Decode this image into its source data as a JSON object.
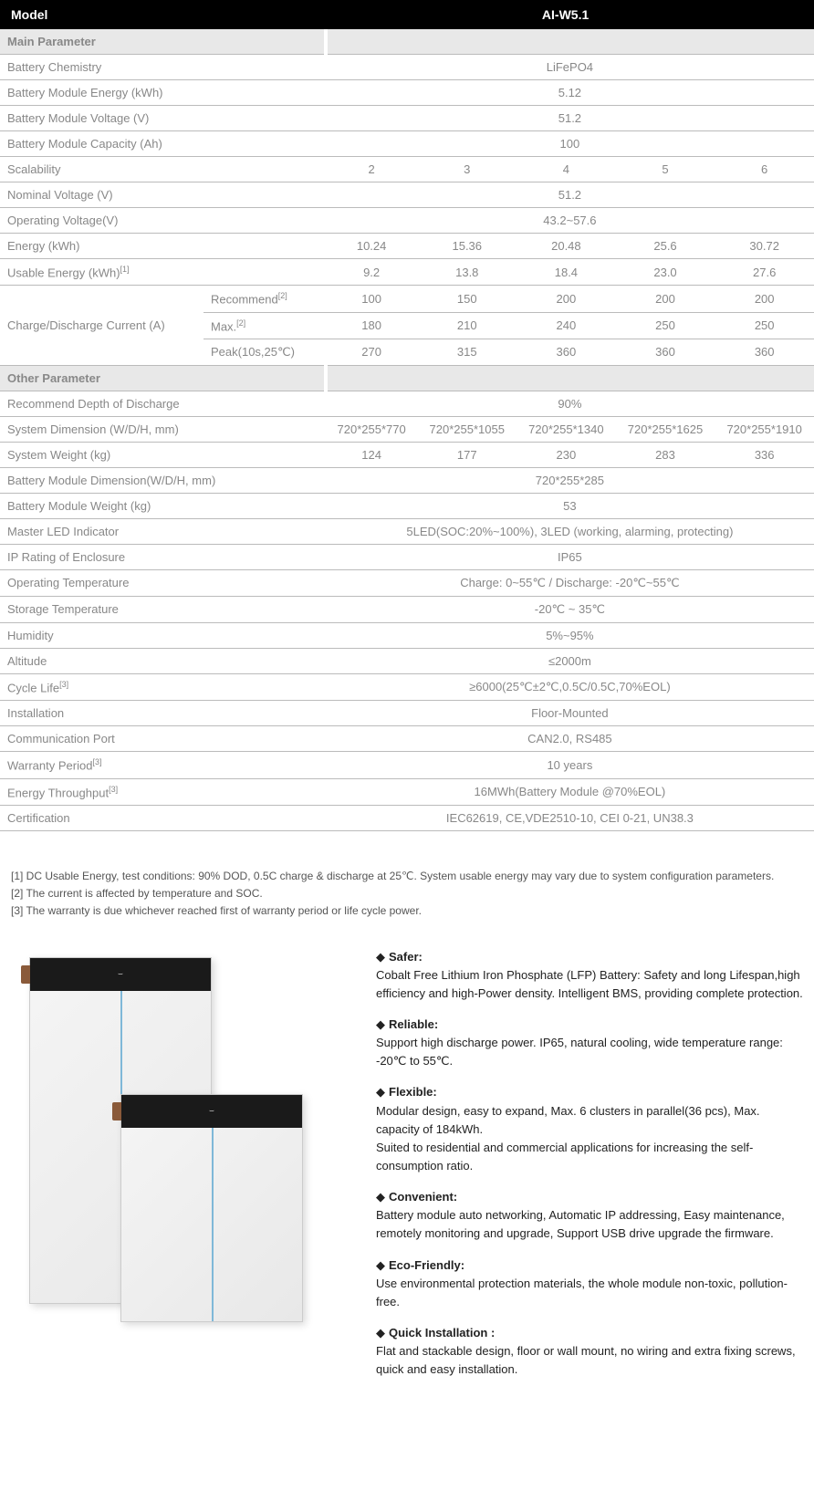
{
  "header": {
    "label": "Model",
    "value": "AI-W5.1"
  },
  "sections": {
    "main": "Main Parameter",
    "other": "Other Parameter"
  },
  "main_rows": {
    "chemistry": {
      "label": "Battery Chemistry",
      "value": "LiFePO4"
    },
    "module_energy": {
      "label": "Battery Module Energy (kWh)",
      "value": "5.12"
    },
    "module_voltage": {
      "label": "Battery Module Voltage (V)",
      "value": "51.2"
    },
    "module_capacity": {
      "label": "Battery Module Capacity (Ah)",
      "value": "100"
    },
    "scalability": {
      "label": "Scalability",
      "v": [
        "2",
        "3",
        "4",
        "5",
        "6"
      ]
    },
    "nominal_voltage": {
      "label": "Nominal Voltage (V)",
      "value": "51.2"
    },
    "operating_voltage": {
      "label": "Operating Voltage(V)",
      "value": "43.2~57.6"
    },
    "energy": {
      "label": "Energy (kWh)",
      "v": [
        "10.24",
        "15.36",
        "20.48",
        "25.6",
        "30.72"
      ]
    },
    "usable_energy": {
      "label": "Usable Energy (kWh)",
      "sup": "[1]",
      "v": [
        "9.2",
        "13.8",
        "18.4",
        "23.0",
        "27.6"
      ]
    },
    "current": {
      "label": "Charge/Discharge Current (A)",
      "recommend": {
        "label": "Recommend",
        "sup": "[2]",
        "v": [
          "100",
          "150",
          "200",
          "200",
          "200"
        ]
      },
      "max": {
        "label": "Max.",
        "sup": "[2]",
        "v": [
          "180",
          "210",
          "240",
          "250",
          "250"
        ]
      },
      "peak": {
        "label": "Peak(10s,25℃)",
        "v": [
          "270",
          "315",
          "360",
          "360",
          "360"
        ]
      }
    }
  },
  "other_rows": {
    "dod": {
      "label": "Recommend Depth of Discharge",
      "value": "90%"
    },
    "sys_dim": {
      "label": "System Dimension (W/D/H, mm)",
      "v": [
        "720*255*770",
        "720*255*1055",
        "720*255*1340",
        "720*255*1625",
        "720*255*1910"
      ]
    },
    "sys_weight": {
      "label": "System Weight (kg)",
      "v": [
        "124",
        "177",
        "230",
        "283",
        "336"
      ]
    },
    "mod_dim": {
      "label": "Battery Module Dimension(W/D/H, mm)",
      "value": "720*255*285"
    },
    "mod_weight": {
      "label": "Battery Module Weight (kg)",
      "value": "53"
    },
    "led": {
      "label": "Master LED Indicator",
      "value": "5LED(SOC:20%~100%), 3LED (working, alarming, protecting)"
    },
    "ip": {
      "label": "IP Rating of Enclosure",
      "value": "IP65"
    },
    "op_temp": {
      "label": "Operating Temperature",
      "value": "Charge: 0~55℃ / Discharge: -20℃~55℃"
    },
    "storage_temp": {
      "label": "Storage Temperature",
      "value": "-20℃ ~ 35℃"
    },
    "humidity": {
      "label": "Humidity",
      "value": "5%~95%"
    },
    "altitude": {
      "label": "Altitude",
      "value": "≤2000m"
    },
    "cycle": {
      "label": "Cycle Life",
      "sup": "[3]",
      "value": "≥6000(25℃±2℃,0.5C/0.5C,70%EOL)"
    },
    "install": {
      "label": "Installation",
      "value": "Floor-Mounted"
    },
    "comm": {
      "label": "Communication Port",
      "value": "CAN2.0, RS485"
    },
    "warranty": {
      "label": "Warranty Period",
      "sup": "[3]",
      "value": "10 years"
    },
    "throughput": {
      "label": "Energy Throughput",
      "sup": "[3]",
      "value": "16MWh(Battery Module @70%EOL)"
    },
    "cert": {
      "label": "Certification",
      "value": "IEC62619, CE,VDE2510-10, CEI 0-21, UN38.3"
    }
  },
  "footnotes": {
    "n1": "[1] DC Usable Energy, test conditions: 90% DOD, 0.5C charge & discharge at 25℃. System usable energy may vary due to system configuration parameters.",
    "n2": "[2] The current is affected by temperature and SOC.",
    "n3": "[3] The warranty is due whichever reached first of warranty period or life cycle power."
  },
  "features": {
    "safer": {
      "title": "Safer:",
      "body": "Cobalt Free Lithium Iron Phosphate (LFP) Battery: Safety and long Lifespan,high efficiency and high-Power density. Intelligent BMS, providing complete protection."
    },
    "reliable": {
      "title": "Reliable:",
      "body": "Support high discharge power. IP65, natural cooling, wide temperature range: -20℃ to 55℃."
    },
    "flexible": {
      "title": "Flexible:",
      "body": "Modular design, easy to expand, Max. 6 clusters in parallel(36 pcs), Max. capacity of 184kWh.",
      "body2": "Suited to residential and commercial applications for increasing the self-consumption ratio."
    },
    "convenient": {
      "title": "Convenient:",
      "body": "Battery module auto networking, Automatic IP addressing, Easy maintenance, remotely monitoring and upgrade, Support USB drive upgrade the firmware."
    },
    "eco": {
      "title": "Eco-Friendly:",
      "body": "Use environmental protection materials, the whole module non-toxic, pollution-free."
    },
    "quick": {
      "title": "Quick Installation :",
      "body": "Flat and stackable design, floor or wall mount, no wiring and extra fixing screws, quick and easy installation."
    }
  },
  "style": {
    "header_bg": "#000000",
    "header_fg": "#ffffff",
    "section_bg": "#e8e8e8",
    "border_color": "#bbbbbb",
    "text_color": "#888888",
    "body_text": "#222222"
  }
}
